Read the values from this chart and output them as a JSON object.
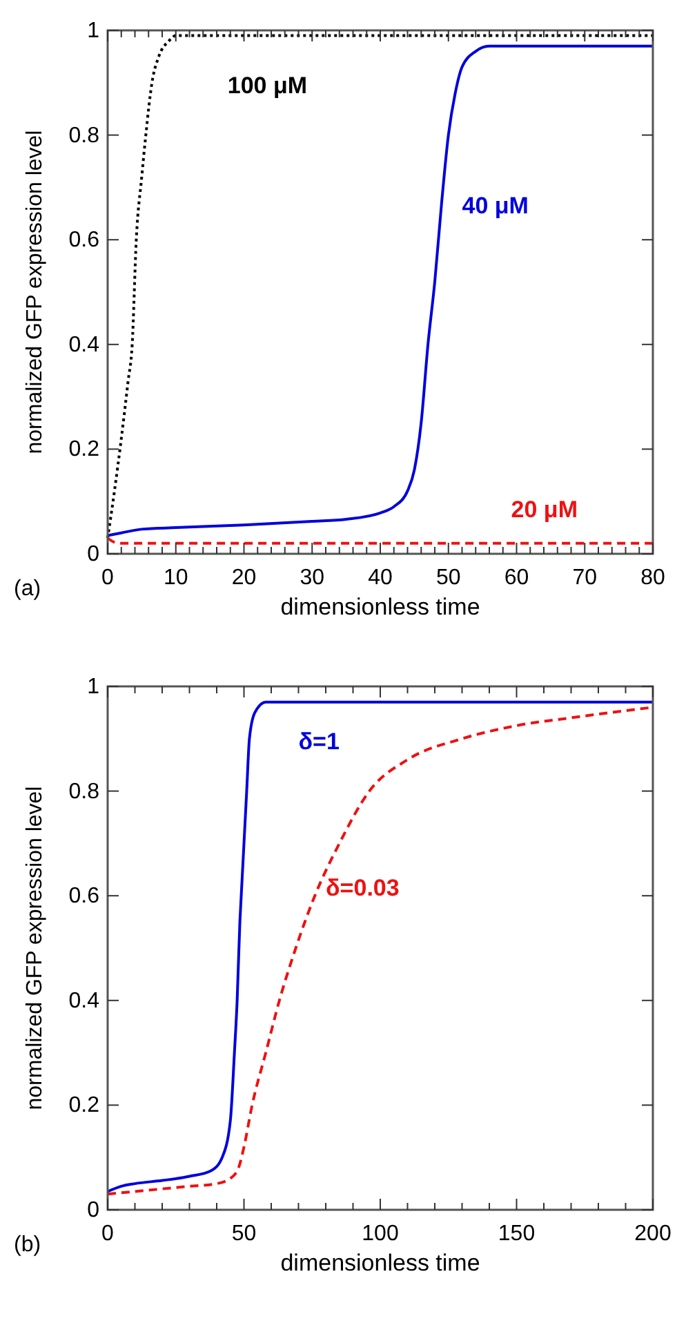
{
  "chart_data": [
    {
      "type": "line",
      "xlabel": "dimensionless time",
      "ylabel": "normalized GFP expression level",
      "annotations": [
        "(a)"
      ],
      "xlim": [
        0,
        80
      ],
      "ylim": [
        0,
        1
      ],
      "xticks": [
        0,
        {
          "value": 2,
          "label": null
        },
        {
          "value": 4,
          "label": null
        },
        {
          "value": 6,
          "label": null
        },
        {
          "value": 8,
          "label": null
        },
        10,
        {
          "value": 12,
          "label": null
        },
        {
          "value": 14,
          "label": null
        },
        {
          "value": 16,
          "label": null
        },
        {
          "value": 18,
          "label": null
        },
        20,
        {
          "value": 22,
          "label": null
        },
        {
          "value": 24,
          "label": null
        },
        {
          "value": 26,
          "label": null
        },
        {
          "value": 28,
          "label": null
        },
        30,
        {
          "value": 32,
          "label": null
        },
        {
          "value": 34,
          "label": null
        },
        {
          "value": 36,
          "label": null
        },
        {
          "value": 38,
          "label": null
        },
        40,
        {
          "value": 42,
          "label": null
        },
        {
          "value": 44,
          "label": null
        },
        {
          "value": 46,
          "label": null
        },
        {
          "value": 48,
          "label": null
        },
        50,
        {
          "value": 52,
          "label": null
        },
        {
          "value": 54,
          "label": null
        },
        {
          "value": 56,
          "label": null
        },
        {
          "value": 58,
          "label": null
        },
        60,
        {
          "value": 62,
          "label": null
        },
        {
          "value": 64,
          "label": null
        },
        {
          "value": 66,
          "label": null
        },
        {
          "value": 68,
          "label": null
        },
        70,
        {
          "value": 72,
          "label": null
        },
        {
          "value": 74,
          "label": null
        },
        {
          "value": 76,
          "label": null
        },
        {
          "value": 78,
          "label": null
        },
        80
      ],
      "yticks": [
        0,
        0.2,
        0.4,
        0.6,
        0.8,
        1
      ],
      "grid": false,
      "series": [
        {
          "name": "100 μM",
          "color": "#000000",
          "line_style": "dotted",
          "x": [
            0,
            1,
            2,
            3,
            3.6,
            4.2,
            5,
            5.6,
            6.5,
            7.5,
            9,
            10,
            80
          ],
          "values": [
            0.03,
            0.12,
            0.22,
            0.33,
            0.4,
            0.6,
            0.72,
            0.8,
            0.9,
            0.95,
            0.98,
            0.99,
            0.99
          ]
        },
        {
          "name": "40 μM",
          "color": "#0000dd",
          "line_style": "solid",
          "x": [
            0,
            2,
            5,
            10,
            20,
            30,
            35,
            40,
            42,
            44,
            45,
            46,
            47,
            48,
            49,
            50,
            51,
            52,
            54,
            56,
            60,
            80
          ],
          "values": [
            0.035,
            0.04,
            0.047,
            0.05,
            0.055,
            0.062,
            0.066,
            0.078,
            0.09,
            0.12,
            0.16,
            0.25,
            0.4,
            0.52,
            0.67,
            0.8,
            0.88,
            0.93,
            0.96,
            0.97,
            0.97,
            0.97
          ]
        },
        {
          "name": "20 μM",
          "color": "#ee1111",
          "line_style": "dashed",
          "x": [
            0,
            1,
            2,
            80
          ],
          "values": [
            0.03,
            0.022,
            0.02,
            0.02
          ]
        }
      ]
    },
    {
      "type": "line",
      "xlabel": "dimensionless time",
      "ylabel": "normalized GFP expression level",
      "annotations": [
        "(b)"
      ],
      "xlim": [
        0,
        200
      ],
      "ylim": [
        0,
        1
      ],
      "xticks": [
        0,
        {
          "value": 10,
          "label": null
        },
        {
          "value": 20,
          "label": null
        },
        {
          "value": 30,
          "label": null
        },
        {
          "value": 40,
          "label": null
        },
        50,
        {
          "value": 60,
          "label": null
        },
        {
          "value": 70,
          "label": null
        },
        {
          "value": 80,
          "label": null
        },
        {
          "value": 90,
          "label": null
        },
        100,
        {
          "value": 110,
          "label": null
        },
        {
          "value": 120,
          "label": null
        },
        {
          "value": 130,
          "label": null
        },
        {
          "value": 140,
          "label": null
        },
        150,
        {
          "value": 160,
          "label": null
        },
        {
          "value": 170,
          "label": null
        },
        {
          "value": 180,
          "label": null
        },
        {
          "value": 190,
          "label": null
        },
        200
      ],
      "yticks": [
        0,
        0.2,
        0.4,
        0.6,
        0.8,
        1
      ],
      "grid": false,
      "series": [
        {
          "name": "δ=1",
          "color": "#0000dd",
          "line_style": "solid",
          "x": [
            0,
            5,
            10,
            20,
            30,
            38,
            42,
            45,
            46.5,
            47.5,
            48.5,
            49,
            51,
            52,
            54,
            58,
            200
          ],
          "values": [
            0.035,
            0.045,
            0.05,
            0.056,
            0.064,
            0.075,
            0.1,
            0.17,
            0.3,
            0.4,
            0.55,
            0.6,
            0.8,
            0.9,
            0.95,
            0.97,
            0.97
          ]
        },
        {
          "name": "δ=0.03",
          "color": "#ee1111",
          "line_style": "dashed",
          "x": [
            0,
            10,
            20,
            30,
            40,
            45,
            48,
            50,
            53,
            58,
            63,
            69,
            76,
            85,
            96,
            110,
            130,
            150,
            170,
            200
          ],
          "values": [
            0.03,
            0.035,
            0.04,
            0.045,
            0.05,
            0.06,
            0.08,
            0.12,
            0.2,
            0.3,
            0.4,
            0.5,
            0.6,
            0.7,
            0.8,
            0.86,
            0.9,
            0.925,
            0.94,
            0.96
          ]
        }
      ]
    }
  ]
}
